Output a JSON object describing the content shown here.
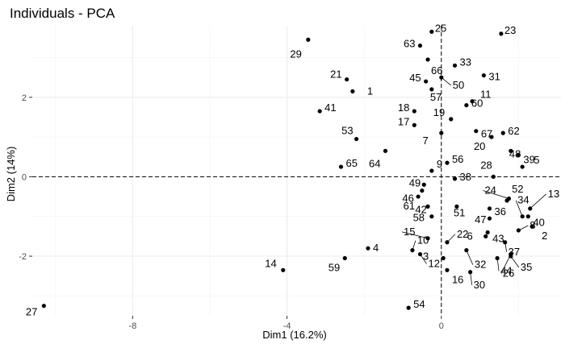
{
  "chart_data": {
    "type": "scatter",
    "title": "Individuals - PCA",
    "xlabel": "Dim1 (16.2%)",
    "ylabel": "Dim2 (14%)",
    "xlim": [
      -10.6,
      3.1
    ],
    "ylim": [
      -3.5,
      3.8
    ],
    "x_ticks": [
      -8,
      -4,
      0
    ],
    "y_ticks": [
      -2,
      0,
      2
    ],
    "x_tick_labels": [
      "-8",
      "-4",
      "0"
    ],
    "y_tick_labels": [
      "-2",
      "0",
      "2"
    ],
    "reference_lines": {
      "x": 0,
      "y": 0
    },
    "grid": true,
    "point_color": "#000000",
    "points": [
      {
        "label": "1",
        "x": -2.3,
        "y": 2.15
      },
      {
        "label": "2",
        "x": 2.35,
        "y": -1.25
      },
      {
        "label": "3",
        "x": 0.05,
        "y": -2.05
      },
      {
        "label": "5",
        "x": 2.1,
        "y": 0.25
      },
      {
        "label": "6",
        "x": 1.15,
        "y": -1.5
      },
      {
        "label": "7",
        "x": 0.0,
        "y": 1.1
      },
      {
        "label": "8",
        "x": 2.0,
        "y": -1.35
      },
      {
        "label": "9",
        "x": -0.25,
        "y": 0.15
      },
      {
        "label": "10",
        "x": -0.75,
        "y": -1.85
      },
      {
        "label": "11",
        "x": 0.8,
        "y": 1.9
      },
      {
        "label": "12",
        "x": -0.55,
        "y": -1.95
      },
      {
        "label": "13",
        "x": 2.3,
        "y": -0.8
      },
      {
        "label": "14",
        "x": -4.1,
        "y": -2.35
      },
      {
        "label": "15",
        "x": -0.35,
        "y": -1.55
      },
      {
        "label": "16",
        "x": 0.15,
        "y": -2.35
      },
      {
        "label": "17",
        "x": -0.7,
        "y": 1.3
      },
      {
        "label": "18",
        "x": -0.7,
        "y": 1.65
      },
      {
        "label": "20",
        "x": 1.3,
        "y": 1.0
      },
      {
        "label": "21",
        "x": -2.45,
        "y": 2.45
      },
      {
        "label": "22",
        "x": 0.15,
        "y": -1.65
      },
      {
        "label": "23",
        "x": 1.55,
        "y": 3.6
      },
      {
        "label": "24",
        "x": 1.75,
        "y": -0.55
      },
      {
        "label": "25",
        "x": -0.25,
        "y": 3.65
      },
      {
        "label": "26",
        "x": 1.8,
        "y": -1.95
      },
      {
        "label": "27",
        "x": -10.3,
        "y": -3.25
      },
      {
        "label": "28",
        "x": 1.35,
        "y": 0.0
      },
      {
        "label": "29",
        "x": -3.45,
        "y": 3.45
      },
      {
        "label": "30",
        "x": 0.75,
        "y": -2.4
      },
      {
        "label": "31",
        "x": 1.1,
        "y": 2.55
      },
      {
        "label": "32",
        "x": 0.65,
        "y": -1.85
      },
      {
        "label": "33",
        "x": 0.35,
        "y": 2.8
      },
      {
        "label": "34",
        "x": 2.1,
        "y": -1.0
      },
      {
        "label": "35",
        "x": 1.8,
        "y": -2.0
      },
      {
        "label": "36",
        "x": 1.25,
        "y": -1.05
      },
      {
        "label": "37",
        "x": 1.65,
        "y": -1.65
      },
      {
        "label": "38",
        "x": 0.35,
        "y": -0.05
      },
      {
        "label": "39",
        "x": 2.0,
        "y": 0.55
      },
      {
        "label": "40",
        "x": 2.25,
        "y": -1.0
      },
      {
        "label": "41",
        "x": -3.15,
        "y": 1.65
      },
      {
        "label": "42",
        "x": -0.25,
        "y": -1.0
      },
      {
        "label": "43",
        "x": 1.2,
        "y": -1.4
      },
      {
        "label": "44",
        "x": 1.45,
        "y": -2.05
      },
      {
        "label": "45",
        "x": -0.4,
        "y": 2.4
      },
      {
        "label": "46",
        "x": -0.5,
        "y": -0.35
      },
      {
        "label": "47",
        "x": 1.25,
        "y": -0.8
      },
      {
        "label": "48",
        "x": 1.8,
        "y": 0.65
      },
      {
        "label": "49",
        "x": -0.45,
        "y": -0.2
      },
      {
        "label": "50",
        "x": 0.0,
        "y": 2.5
      },
      {
        "label": "51",
        "x": 0.4,
        "y": -0.75
      },
      {
        "label": "52",
        "x": 1.7,
        "y": -0.6
      },
      {
        "label": "53",
        "x": -2.2,
        "y": 0.95
      },
      {
        "label": "54",
        "x": -0.85,
        "y": -3.3
      },
      {
        "label": "56",
        "x": 0.15,
        "y": 0.35
      },
      {
        "label": "57",
        "x": -0.25,
        "y": 2.2
      },
      {
        "label": "58",
        "x": -0.35,
        "y": -0.75
      },
      {
        "label": "59",
        "x": -2.5,
        "y": -2.05
      },
      {
        "label": "60",
        "x": 0.65,
        "y": 1.8
      },
      {
        "label": "61",
        "x": -0.6,
        "y": -0.5
      },
      {
        "label": "62",
        "x": 1.6,
        "y": 1.1
      },
      {
        "label": "63",
        "x": -0.55,
        "y": 3.3
      },
      {
        "label": "64",
        "x": -1.45,
        "y": 0.65
      },
      {
        "label": "65",
        "x": -2.6,
        "y": 0.25
      },
      {
        "label": "66",
        "x": -0.35,
        "y": 2.95
      },
      {
        "label": "67",
        "x": 0.9,
        "y": 1.15
      },
      {
        "label": "4",
        "x": -1.9,
        "y": -1.8
      },
      {
        "label": "19",
        "x": 0.25,
        "y": 1.45
      }
    ]
  }
}
